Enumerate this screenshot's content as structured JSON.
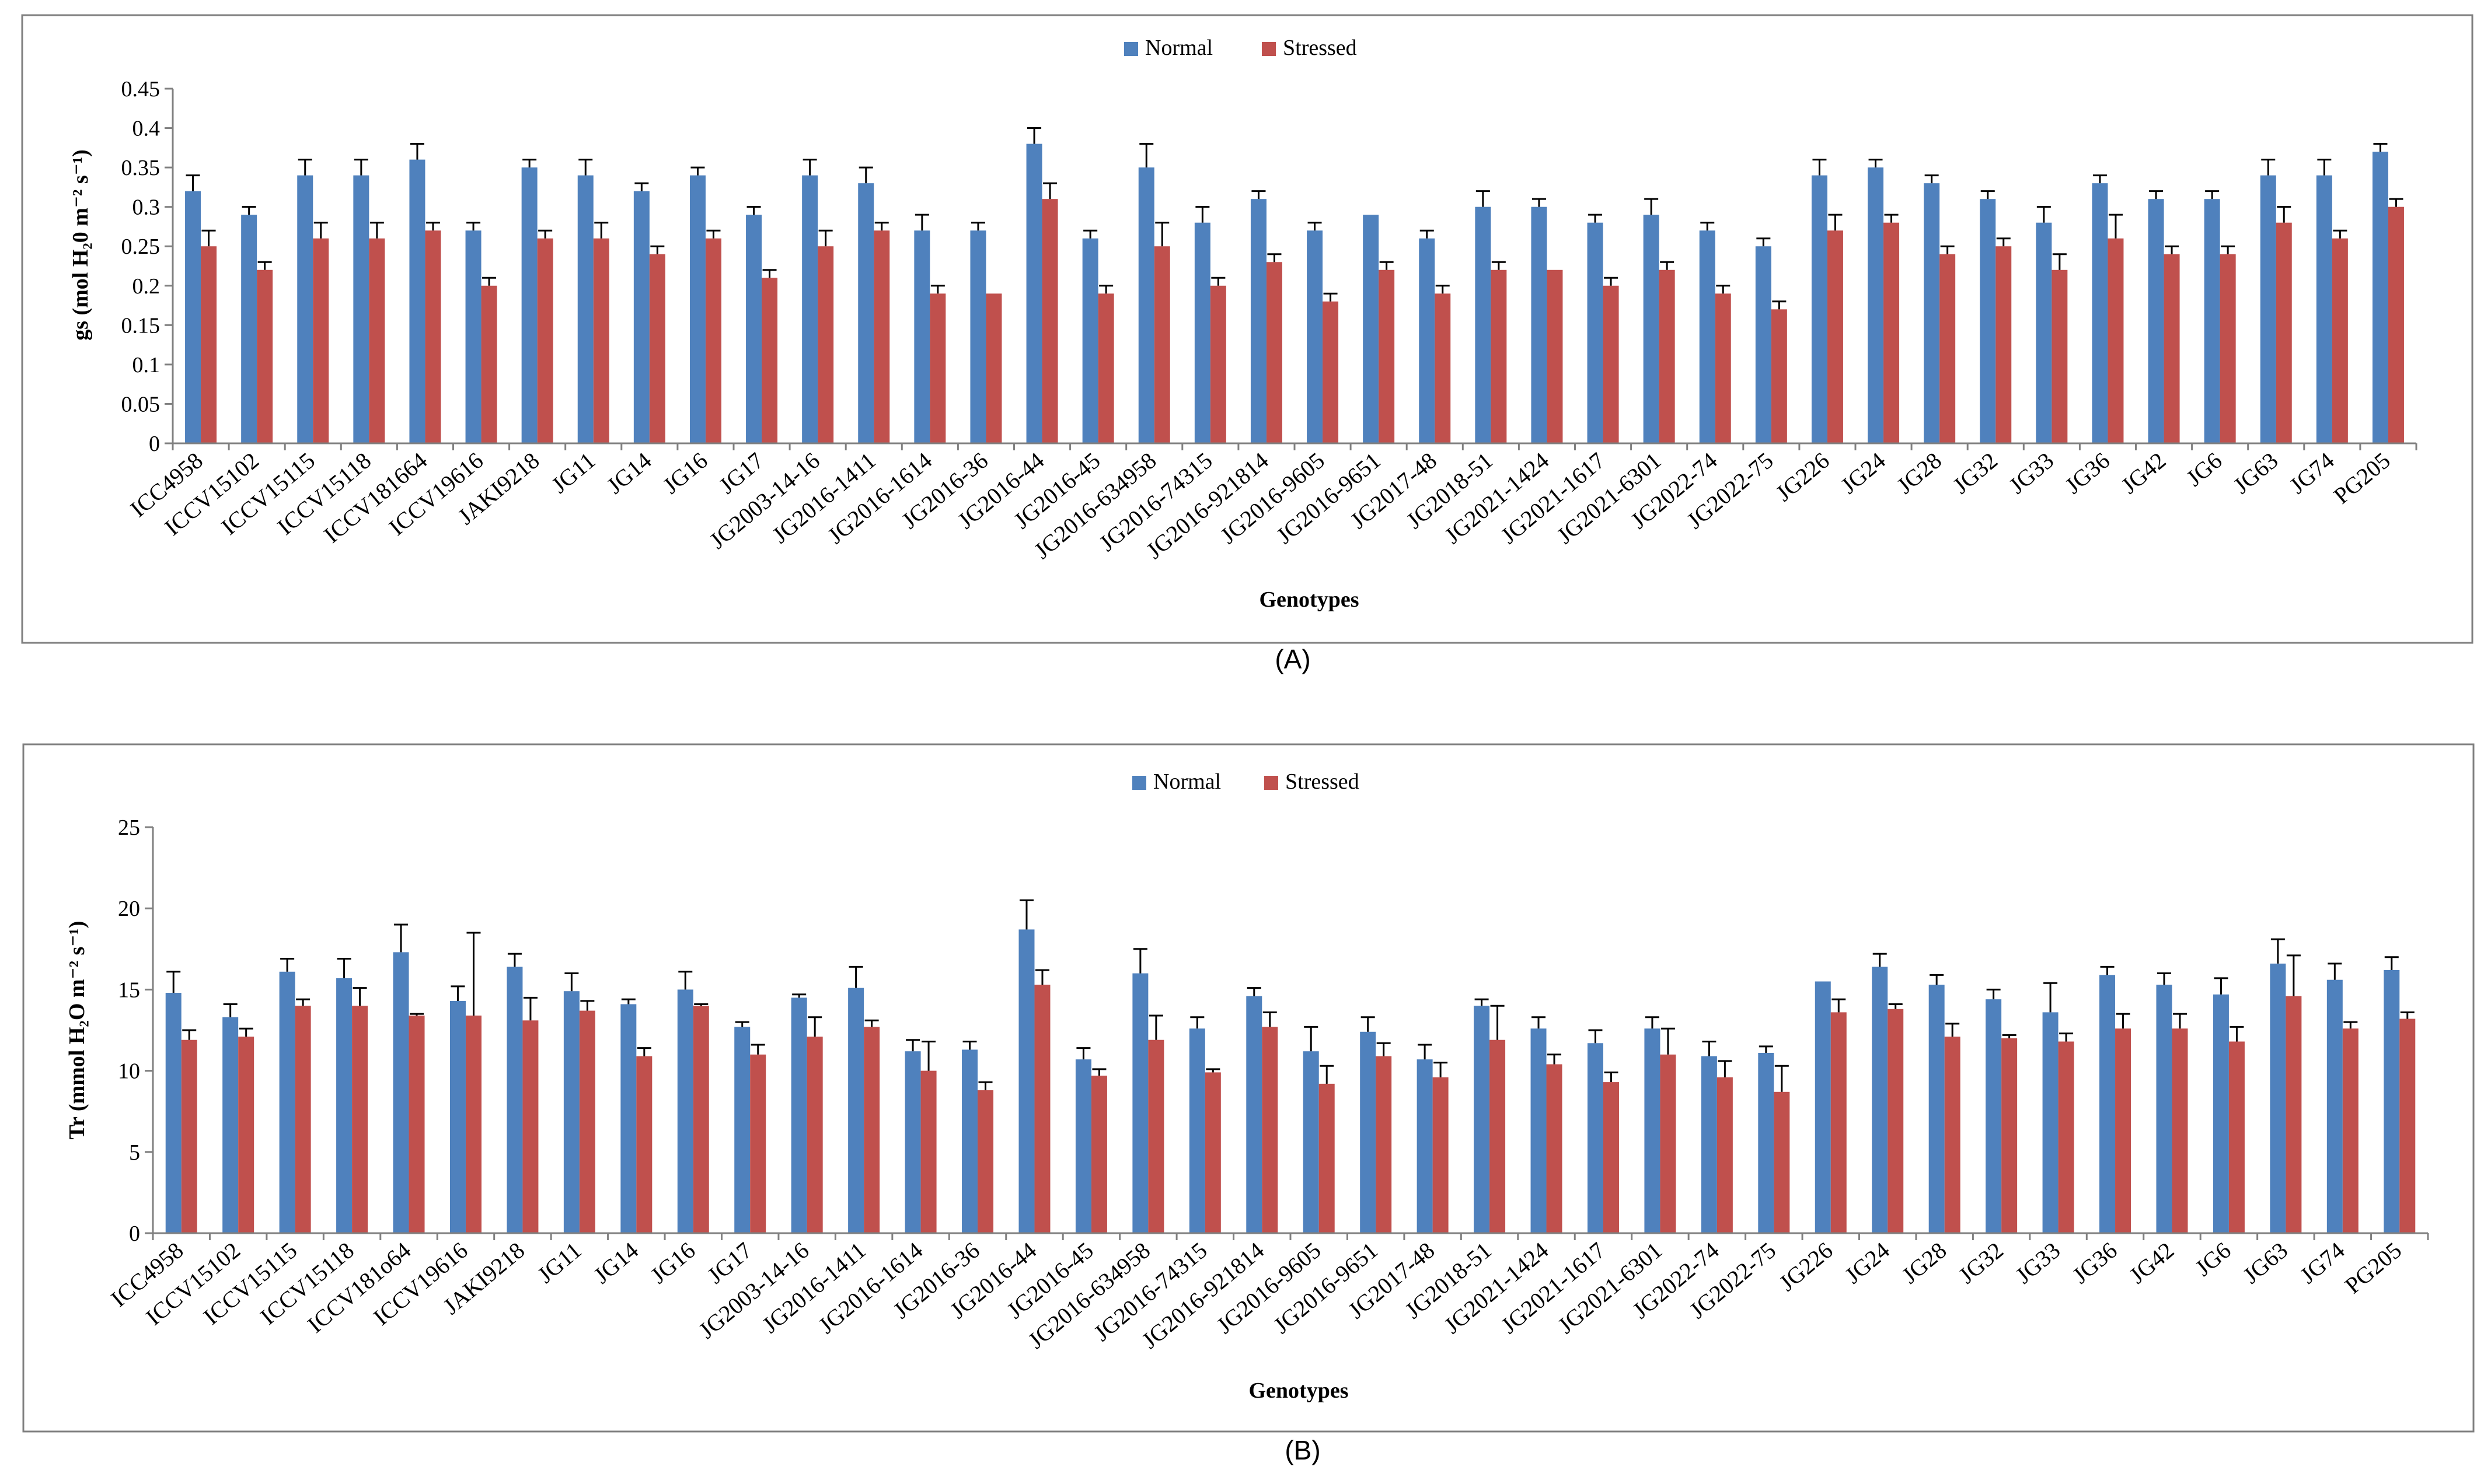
{
  "chart_data": [
    {
      "type": "bar",
      "panel_label": "(A)",
      "ylabel": "gs (mol H₂0 m⁻² s⁻¹)",
      "xlabel": "Genotypes",
      "ylim": [
        0,
        0.45
      ],
      "yticks": [
        "0",
        "0.05",
        "0.1",
        "0.15",
        "0.2",
        "0.25",
        "0.3",
        "0.35",
        "0.4",
        "0.45"
      ],
      "legend_position": "top-center",
      "grid": false,
      "categories": [
        "ICC4958",
        "ICCV15102",
        "ICCV15115",
        "ICCV15118",
        "ICCV181664",
        "ICCV19616",
        "JAKI9218",
        "JG11",
        "JG14",
        "JG16",
        "JG17",
        "JG2003-14-16",
        "JG2016-1411",
        "JG2016-1614",
        "JG2016-36",
        "JG2016-44",
        "JG2016-45",
        "JG2016-634958",
        "JG2016-74315",
        "JG2016-921814",
        "JG2016-9605",
        "JG2016-9651",
        "JG2017-48",
        "JG2018-51",
        "JG2021-1424",
        "JG2021-1617",
        "JG2021-6301",
        "JG2022-74",
        "JG2022-75",
        "JG226",
        "JG24",
        "JG28",
        "JG32",
        "JG33",
        "JG36",
        "JG42",
        "JG6",
        "JG63",
        "JG74",
        "PG205"
      ],
      "series": [
        {
          "name": "Normal",
          "color": "#4f81bd",
          "values": [
            0.32,
            0.29,
            0.34,
            0.34,
            0.36,
            0.27,
            0.35,
            0.34,
            0.32,
            0.34,
            0.29,
            0.34,
            0.33,
            0.27,
            0.27,
            0.38,
            0.26,
            0.35,
            0.28,
            0.31,
            0.27,
            0.29,
            0.26,
            0.3,
            0.3,
            0.28,
            0.29,
            0.27,
            0.25,
            0.34,
            0.35,
            0.33,
            0.31,
            0.28,
            0.33,
            0.31,
            0.31,
            0.34,
            0.34,
            0.37
          ],
          "errors": [
            0.02,
            0.01,
            0.02,
            0.02,
            0.02,
            0.01,
            0.01,
            0.02,
            0.01,
            0.01,
            0.01,
            0.02,
            0.02,
            0.02,
            0.01,
            0.02,
            0.01,
            0.03,
            0.02,
            0.01,
            0.01,
            0.0,
            0.01,
            0.02,
            0.01,
            0.01,
            0.02,
            0.01,
            0.01,
            0.02,
            0.01,
            0.01,
            0.01,
            0.02,
            0.01,
            0.01,
            0.01,
            0.02,
            0.02,
            0.01
          ]
        },
        {
          "name": "Stressed",
          "color": "#c0504d",
          "values": [
            0.25,
            0.22,
            0.26,
            0.26,
            0.27,
            0.2,
            0.26,
            0.26,
            0.24,
            0.26,
            0.21,
            0.25,
            0.27,
            0.19,
            0.19,
            0.31,
            0.19,
            0.25,
            0.2,
            0.23,
            0.18,
            0.22,
            0.19,
            0.22,
            0.22,
            0.2,
            0.22,
            0.19,
            0.17,
            0.27,
            0.28,
            0.24,
            0.25,
            0.22,
            0.26,
            0.24,
            0.24,
            0.28,
            0.26,
            0.3
          ],
          "errors": [
            0.02,
            0.01,
            0.02,
            0.02,
            0.01,
            0.01,
            0.01,
            0.02,
            0.01,
            0.01,
            0.01,
            0.02,
            0.01,
            0.01,
            0.0,
            0.02,
            0.01,
            0.03,
            0.01,
            0.01,
            0.01,
            0.01,
            0.01,
            0.01,
            0.0,
            0.01,
            0.01,
            0.01,
            0.01,
            0.02,
            0.01,
            0.01,
            0.01,
            0.02,
            0.03,
            0.01,
            0.01,
            0.02,
            0.01,
            0.01
          ]
        }
      ]
    },
    {
      "type": "bar",
      "panel_label": "(B)",
      "ylabel": "Tr (mmol H₂O m⁻² s⁻¹)",
      "xlabel": "Genotypes",
      "ylim": [
        0,
        25
      ],
      "yticks": [
        "0",
        "5",
        "10",
        "15",
        "20",
        "25"
      ],
      "legend_position": "top-center",
      "grid": false,
      "categories": [
        "ICC4958",
        "ICCV15102",
        "ICCV15115",
        "ICCV15118",
        "ICCV181o64",
        "ICCV19616",
        "JAKI9218",
        "JG11",
        "JG14",
        "JG16",
        "JG17",
        "JG2003-14-16",
        "JG2016-1411",
        "JG2016-1614",
        "JG2016-36",
        "JG2016-44",
        "JG2016-45",
        "JG2016-634958",
        "JG2016-74315",
        "JG2016-921814",
        "JG2016-9605",
        "JG2016-9651",
        "JG2017-48",
        "JG2018-51",
        "JG2021-1424",
        "JG2021-1617",
        "JG2021-6301",
        "JG2022-74",
        "JG2022-75",
        "JG226",
        "JG24",
        "JG28",
        "JG32",
        "JG33",
        "JG36",
        "JG42",
        "JG6",
        "JG63",
        "JG74",
        "PG205"
      ],
      "series": [
        {
          "name": "Normal",
          "color": "#4f81bd",
          "values": [
            14.8,
            13.3,
            16.1,
            15.7,
            17.3,
            14.3,
            16.4,
            14.9,
            14.1,
            15.0,
            12.7,
            14.5,
            15.1,
            11.2,
            11.3,
            18.7,
            10.7,
            16.0,
            12.6,
            14.6,
            11.2,
            12.4,
            10.7,
            14.0,
            12.6,
            11.7,
            12.6,
            10.9,
            11.1,
            15.5,
            16.4,
            15.3,
            14.4,
            13.6,
            15.9,
            15.3,
            14.7,
            16.6,
            15.6,
            16.2
          ],
          "errors": [
            1.3,
            0.8,
            0.8,
            1.2,
            1.7,
            0.9,
            0.8,
            1.1,
            0.3,
            1.1,
            0.3,
            0.2,
            1.3,
            0.7,
            0.5,
            1.8,
            0.7,
            1.5,
            0.7,
            0.5,
            1.5,
            0.9,
            0.9,
            0.4,
            0.7,
            0.8,
            0.7,
            0.9,
            0.4,
            0.0,
            0.8,
            0.6,
            0.6,
            1.8,
            0.5,
            0.7,
            1.0,
            1.5,
            1.0,
            0.8
          ]
        },
        {
          "name": "Stressed",
          "color": "#c0504d",
          "values": [
            11.9,
            12.1,
            14.0,
            14.0,
            13.4,
            13.4,
            13.1,
            13.7,
            10.9,
            14.0,
            11.0,
            12.1,
            12.7,
            10.0,
            8.8,
            15.3,
            9.7,
            11.9,
            9.9,
            12.7,
            9.2,
            10.9,
            9.6,
            11.9,
            10.4,
            9.3,
            11.0,
            9.6,
            8.7,
            13.6,
            13.8,
            12.1,
            12.0,
            11.8,
            12.6,
            12.6,
            11.8,
            14.6,
            12.6,
            13.2
          ],
          "errors": [
            0.6,
            0.5,
            0.4,
            1.1,
            0.1,
            5.1,
            1.4,
            0.6,
            0.5,
            0.1,
            0.6,
            1.2,
            0.4,
            1.8,
            0.5,
            0.9,
            0.4,
            1.5,
            0.2,
            0.9,
            1.1,
            0.8,
            0.9,
            2.1,
            0.6,
            0.6,
            1.6,
            1.0,
            1.6,
            0.8,
            0.3,
            0.8,
            0.2,
            0.5,
            0.9,
            0.9,
            0.9,
            2.5,
            0.4,
            0.4
          ]
        }
      ]
    }
  ]
}
